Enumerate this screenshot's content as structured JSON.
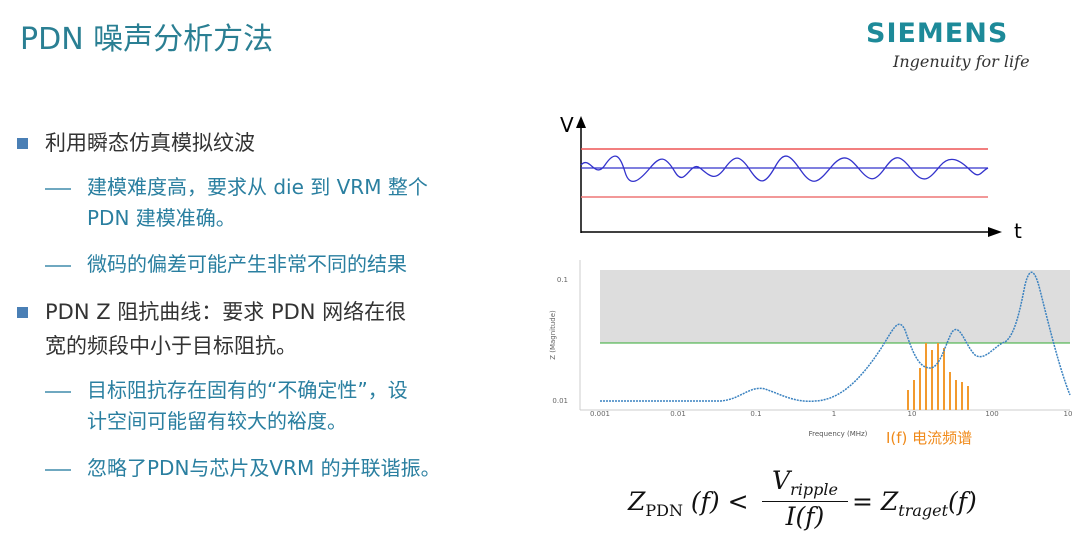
{
  "header": {
    "title": "PDN 噪声分析方法",
    "logo": "SIEMENS",
    "tagline": "Ingenuity for life"
  },
  "bullets": [
    {
      "lines": [
        "利用瞬态仿真模拟纹波"
      ],
      "subs": [
        {
          "lines": [
            "建模难度高，要求从 die 到 VRM 整个",
            "PDN 建模准确。"
          ]
        },
        {
          "lines": [
            "微码的偏差可能产生非常不同的结果"
          ]
        }
      ]
    },
    {
      "lines": [
        "PDN Z 阻抗曲线：要求 PDN 网络在很",
        "宽的频段中小于目标阻抗。"
      ],
      "subs": [
        {
          "lines": [
            "目标阻抗存在固有的“不确定性”，设",
            "计空间可能留有较大的裕度。"
          ]
        },
        {
          "lines": [
            "忽略了PDN与芯片及VRM 的并联谐振。"
          ]
        }
      ]
    }
  ],
  "ripple_sketch": {
    "y_label": "V",
    "x_label": "t"
  },
  "impedance_plot": {
    "y_label": "Z (Magnitude)",
    "x_label": "Frequency (MHz)",
    "yticks": [
      "0.1",
      "0.01"
    ],
    "xticks": [
      "0.001",
      "0.01",
      "0.1",
      "1",
      "10",
      "100",
      "10"
    ],
    "spectrum_label": "I(f) 电流频谱"
  },
  "formula": {
    "lhs": "Z",
    "lhs_sub": "PDN",
    "lhs_arg": "(f) <",
    "num": "V",
    "num_sub": "ripple",
    "den": "I(f)",
    "eq": "= Z",
    "rhs_sub": "traget",
    "rhs_arg": "(f)"
  }
}
